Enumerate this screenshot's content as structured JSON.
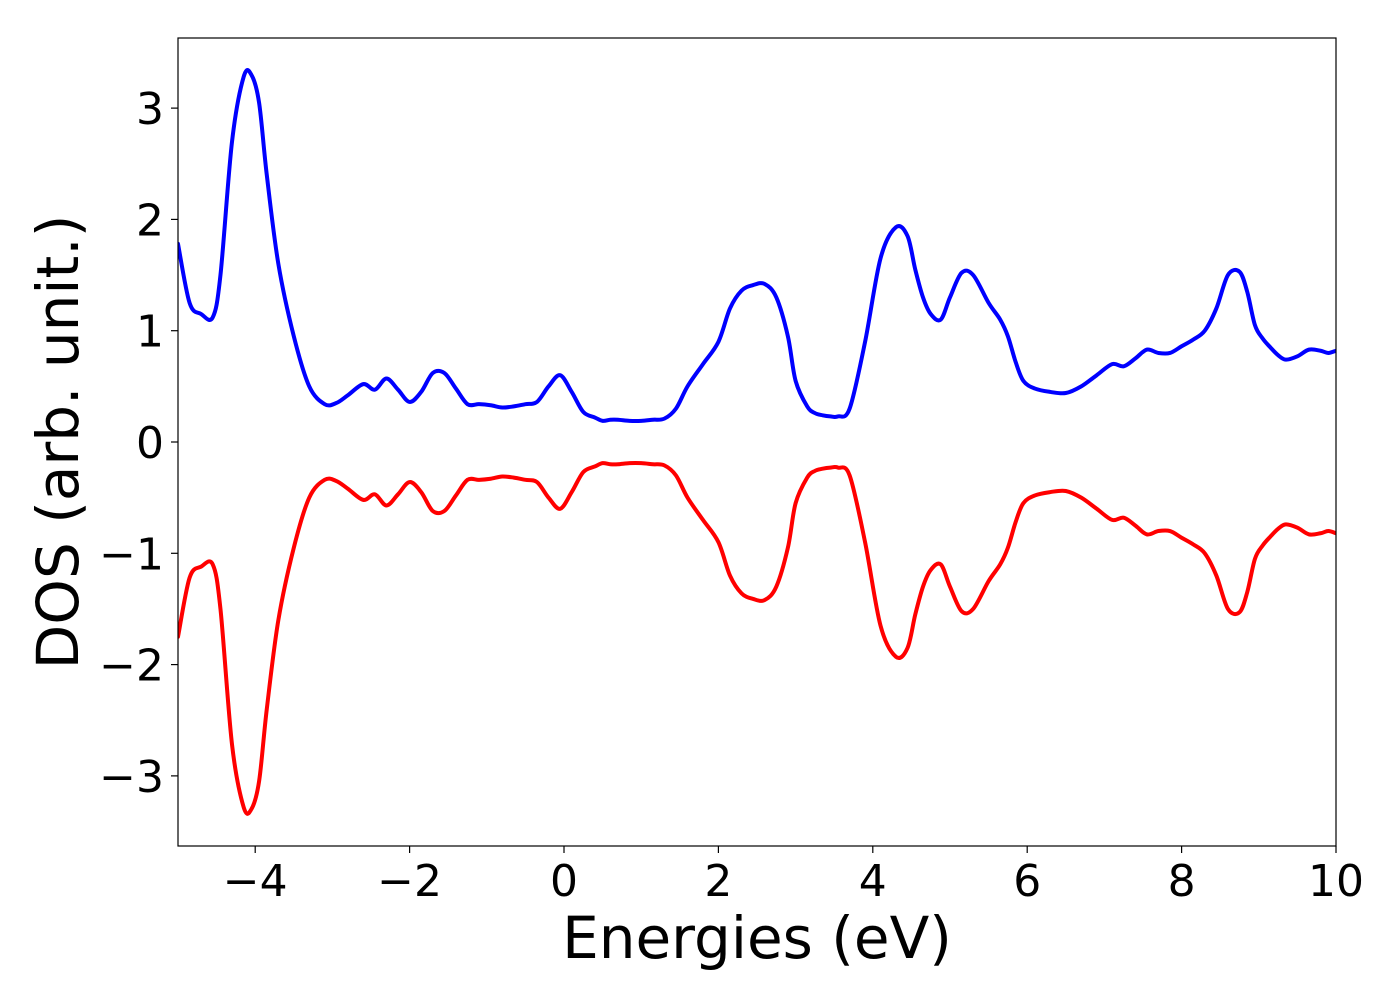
{
  "chart_data": {
    "type": "line",
    "title": "",
    "xlabel": "Energies (eV)",
    "ylabel": "DOS (arb. unit.)",
    "xlim": [
      -5,
      10
    ],
    "ylim": [
      -3.63,
      3.63
    ],
    "xticks": [
      -4,
      -2,
      0,
      2,
      4,
      6,
      8,
      10
    ],
    "xtick_labels": [
      "−4",
      "−2",
      "0",
      "2",
      "4",
      "6",
      "8",
      "10"
    ],
    "yticks": [
      -3,
      -2,
      -1,
      0,
      1,
      2,
      3
    ],
    "ytick_labels": [
      "−3",
      "−2",
      "−1",
      "0",
      "1",
      "2",
      "3"
    ],
    "grid": false,
    "legend": "none",
    "series": [
      {
        "color": "#0000ff",
        "x": [
          -5.0,
          -4.85,
          -4.7,
          -4.55,
          -4.45,
          -4.3,
          -4.15,
          -4.05,
          -3.95,
          -3.85,
          -3.7,
          -3.5,
          -3.3,
          -3.1,
          -2.95,
          -2.8,
          -2.6,
          -2.45,
          -2.3,
          -2.15,
          -2.0,
          -1.85,
          -1.7,
          -1.55,
          -1.4,
          -1.25,
          -1.1,
          -0.95,
          -0.8,
          -0.65,
          -0.5,
          -0.35,
          -0.2,
          -0.05,
          0.1,
          0.25,
          0.4,
          0.5,
          0.6,
          0.7,
          0.85,
          1.0,
          1.15,
          1.3,
          1.45,
          1.6,
          1.8,
          2.0,
          2.15,
          2.3,
          2.45,
          2.6,
          2.75,
          2.9,
          3.0,
          3.15,
          3.25,
          3.35,
          3.45,
          3.55,
          3.7,
          3.9,
          4.1,
          4.3,
          4.45,
          4.55,
          4.65,
          4.75,
          4.88,
          5.0,
          5.15,
          5.3,
          5.5,
          5.65,
          5.75,
          5.85,
          5.95,
          6.1,
          6.3,
          6.5,
          6.7,
          6.9,
          7.1,
          7.25,
          7.4,
          7.55,
          7.7,
          7.85,
          8.0,
          8.15,
          8.3,
          8.45,
          8.6,
          8.75,
          8.85,
          8.95,
          9.05,
          9.15,
          9.25,
          9.35,
          9.5,
          9.65,
          9.8,
          9.9,
          10.0
        ],
        "y": [
          1.78,
          1.25,
          1.15,
          1.12,
          1.5,
          2.7,
          3.28,
          3.3,
          3.05,
          2.4,
          1.6,
          0.95,
          0.5,
          0.34,
          0.35,
          0.42,
          0.52,
          0.47,
          0.57,
          0.47,
          0.36,
          0.45,
          0.62,
          0.62,
          0.48,
          0.34,
          0.34,
          0.33,
          0.31,
          0.32,
          0.34,
          0.36,
          0.5,
          0.6,
          0.45,
          0.27,
          0.22,
          0.19,
          0.2,
          0.2,
          0.19,
          0.19,
          0.2,
          0.21,
          0.3,
          0.5,
          0.7,
          0.9,
          1.2,
          1.36,
          1.41,
          1.42,
          1.3,
          0.95,
          0.55,
          0.32,
          0.26,
          0.24,
          0.23,
          0.23,
          0.3,
          0.9,
          1.65,
          1.93,
          1.85,
          1.55,
          1.3,
          1.15,
          1.1,
          1.3,
          1.52,
          1.5,
          1.25,
          1.1,
          0.95,
          0.72,
          0.55,
          0.48,
          0.45,
          0.44,
          0.5,
          0.6,
          0.7,
          0.68,
          0.75,
          0.83,
          0.8,
          0.8,
          0.86,
          0.92,
          1.0,
          1.2,
          1.5,
          1.53,
          1.35,
          1.05,
          0.93,
          0.85,
          0.78,
          0.74,
          0.77,
          0.83,
          0.82,
          0.8,
          0.82
        ]
      },
      {
        "color": "#ff0000",
        "x": [
          -5.0,
          -4.85,
          -4.7,
          -4.55,
          -4.45,
          -4.3,
          -4.15,
          -4.05,
          -3.95,
          -3.85,
          -3.7,
          -3.5,
          -3.3,
          -3.1,
          -2.95,
          -2.8,
          -2.6,
          -2.45,
          -2.3,
          -2.15,
          -2.0,
          -1.85,
          -1.7,
          -1.55,
          -1.4,
          -1.25,
          -1.1,
          -0.95,
          -0.8,
          -0.65,
          -0.5,
          -0.35,
          -0.2,
          -0.05,
          0.1,
          0.25,
          0.4,
          0.5,
          0.6,
          0.7,
          0.85,
          1.0,
          1.15,
          1.3,
          1.45,
          1.6,
          1.8,
          2.0,
          2.15,
          2.3,
          2.45,
          2.6,
          2.75,
          2.9,
          3.0,
          3.15,
          3.25,
          3.35,
          3.45,
          3.55,
          3.7,
          3.9,
          4.1,
          4.3,
          4.45,
          4.55,
          4.65,
          4.75,
          4.88,
          5.0,
          5.15,
          5.3,
          5.5,
          5.65,
          5.75,
          5.85,
          5.95,
          6.1,
          6.3,
          6.5,
          6.7,
          6.9,
          7.1,
          7.25,
          7.4,
          7.55,
          7.7,
          7.85,
          8.0,
          8.15,
          8.3,
          8.45,
          8.6,
          8.75,
          8.85,
          8.95,
          9.05,
          9.15,
          9.25,
          9.35,
          9.5,
          9.65,
          9.8,
          9.9,
          10.0
        ],
        "y": [
          -1.75,
          -1.22,
          -1.12,
          -1.1,
          -1.5,
          -2.72,
          -3.28,
          -3.3,
          -3.05,
          -2.4,
          -1.6,
          -0.95,
          -0.5,
          -0.34,
          -0.35,
          -0.42,
          -0.52,
          -0.47,
          -0.57,
          -0.47,
          -0.36,
          -0.45,
          -0.62,
          -0.62,
          -0.48,
          -0.34,
          -0.34,
          -0.33,
          -0.31,
          -0.32,
          -0.34,
          -0.36,
          -0.5,
          -0.6,
          -0.45,
          -0.27,
          -0.22,
          -0.19,
          -0.2,
          -0.2,
          -0.19,
          -0.19,
          -0.2,
          -0.21,
          -0.3,
          -0.5,
          -0.7,
          -0.9,
          -1.2,
          -1.36,
          -1.41,
          -1.42,
          -1.3,
          -0.95,
          -0.55,
          -0.32,
          -0.26,
          -0.24,
          -0.23,
          -0.23,
          -0.3,
          -0.9,
          -1.65,
          -1.93,
          -1.85,
          -1.55,
          -1.3,
          -1.15,
          -1.1,
          -1.3,
          -1.52,
          -1.5,
          -1.25,
          -1.1,
          -0.95,
          -0.72,
          -0.55,
          -0.48,
          -0.45,
          -0.44,
          -0.5,
          -0.6,
          -0.7,
          -0.68,
          -0.75,
          -0.83,
          -0.8,
          -0.8,
          -0.86,
          -0.92,
          -1.0,
          -1.2,
          -1.5,
          -1.53,
          -1.35,
          -1.05,
          -0.93,
          -0.85,
          -0.78,
          -0.74,
          -0.77,
          -0.83,
          -0.82,
          -0.8,
          -0.82
        ]
      }
    ]
  }
}
